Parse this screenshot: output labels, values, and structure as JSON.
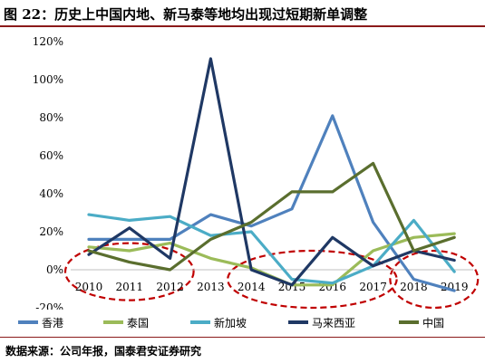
{
  "title": "图 22：历史上中国内地、新马泰等地均出现过短期新单调整",
  "source": "数据来源：公司年报，国泰君安证券研究",
  "chart_data": {
    "type": "line",
    "x": [
      "2010",
      "2011",
      "2012",
      "2013",
      "2014",
      "2015",
      "2016",
      "2017",
      "2018",
      "2019"
    ],
    "yticks": [
      "-20%",
      "0%",
      "20%",
      "40%",
      "60%",
      "80%",
      "100%",
      "120%"
    ],
    "ylim": [
      -20,
      120
    ],
    "grid": false,
    "legend": "bottom",
    "series": [
      {
        "name": "香港",
        "color": "#4f81bd",
        "values": [
          16,
          16,
          16,
          29,
          23,
          32,
          81,
          25,
          -5,
          -11
        ]
      },
      {
        "name": "泰国",
        "color": "#9bbb59",
        "values": [
          12,
          10,
          14,
          6,
          1,
          -8,
          -8,
          10,
          17,
          19
        ]
      },
      {
        "name": "新加坡",
        "color": "#4bacc6",
        "values": [
          29,
          26,
          28,
          18,
          20,
          -5,
          -7,
          2,
          26,
          -1
        ]
      },
      {
        "name": "马来西亚",
        "color": "#1f3864",
        "values": [
          8,
          22,
          6,
          111,
          0,
          -8,
          17,
          2,
          10,
          5
        ]
      },
      {
        "name": "中国",
        "color": "#5a6e2e",
        "values": [
          10,
          4,
          0,
          16,
          25,
          41,
          41,
          56,
          10,
          17
        ]
      }
    ],
    "annotations": [
      {
        "type": "dashed-ellipse",
        "color": "#c00000",
        "around": [
          "2010",
          "2012"
        ],
        "yrange": [
          -16,
          14
        ]
      },
      {
        "type": "dashed-ellipse",
        "color": "#c00000",
        "around": [
          "2014",
          "2017"
        ],
        "yrange": [
          -20,
          10
        ]
      },
      {
        "type": "dashed-ellipse",
        "color": "#c00000",
        "around": [
          "2018",
          "2019"
        ],
        "yrange": [
          -20,
          10
        ]
      }
    ]
  }
}
